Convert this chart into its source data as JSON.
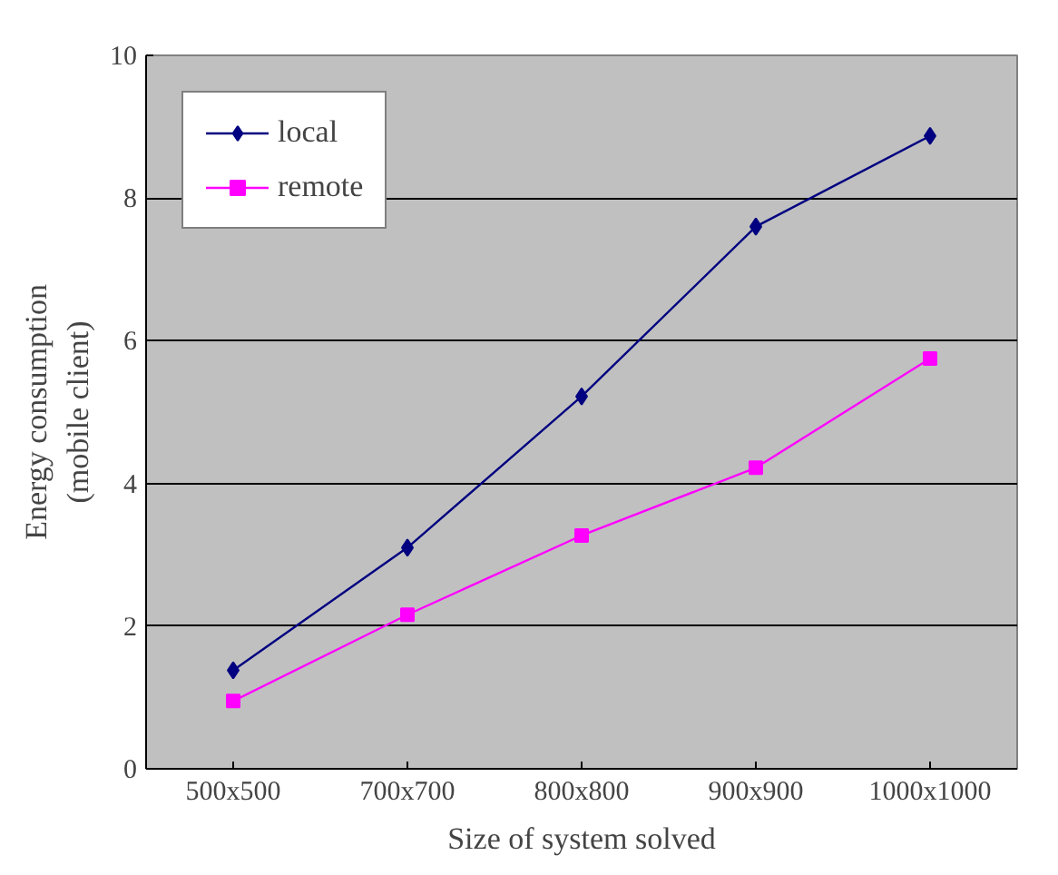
{
  "chart_data": {
    "type": "line",
    "xlabel": "Size of system solved",
    "ylabel": "Energy consumption\n(mobile client)",
    "categories": [
      "500x500",
      "700x700",
      "800x800",
      "900x900",
      "1000x1000"
    ],
    "series": [
      {
        "name": "local",
        "color": "#000080",
        "marker": "diamond",
        "values": [
          1.38,
          3.1,
          5.22,
          7.6,
          8.87
        ]
      },
      {
        "name": "remote",
        "color": "#ff00ff",
        "marker": "square",
        "values": [
          0.95,
          2.16,
          3.27,
          4.22,
          5.75
        ]
      }
    ],
    "ylim": [
      0,
      10
    ],
    "yticks": [
      0,
      2,
      4,
      6,
      8,
      10
    ],
    "grid": "y",
    "legend": "top left"
  }
}
